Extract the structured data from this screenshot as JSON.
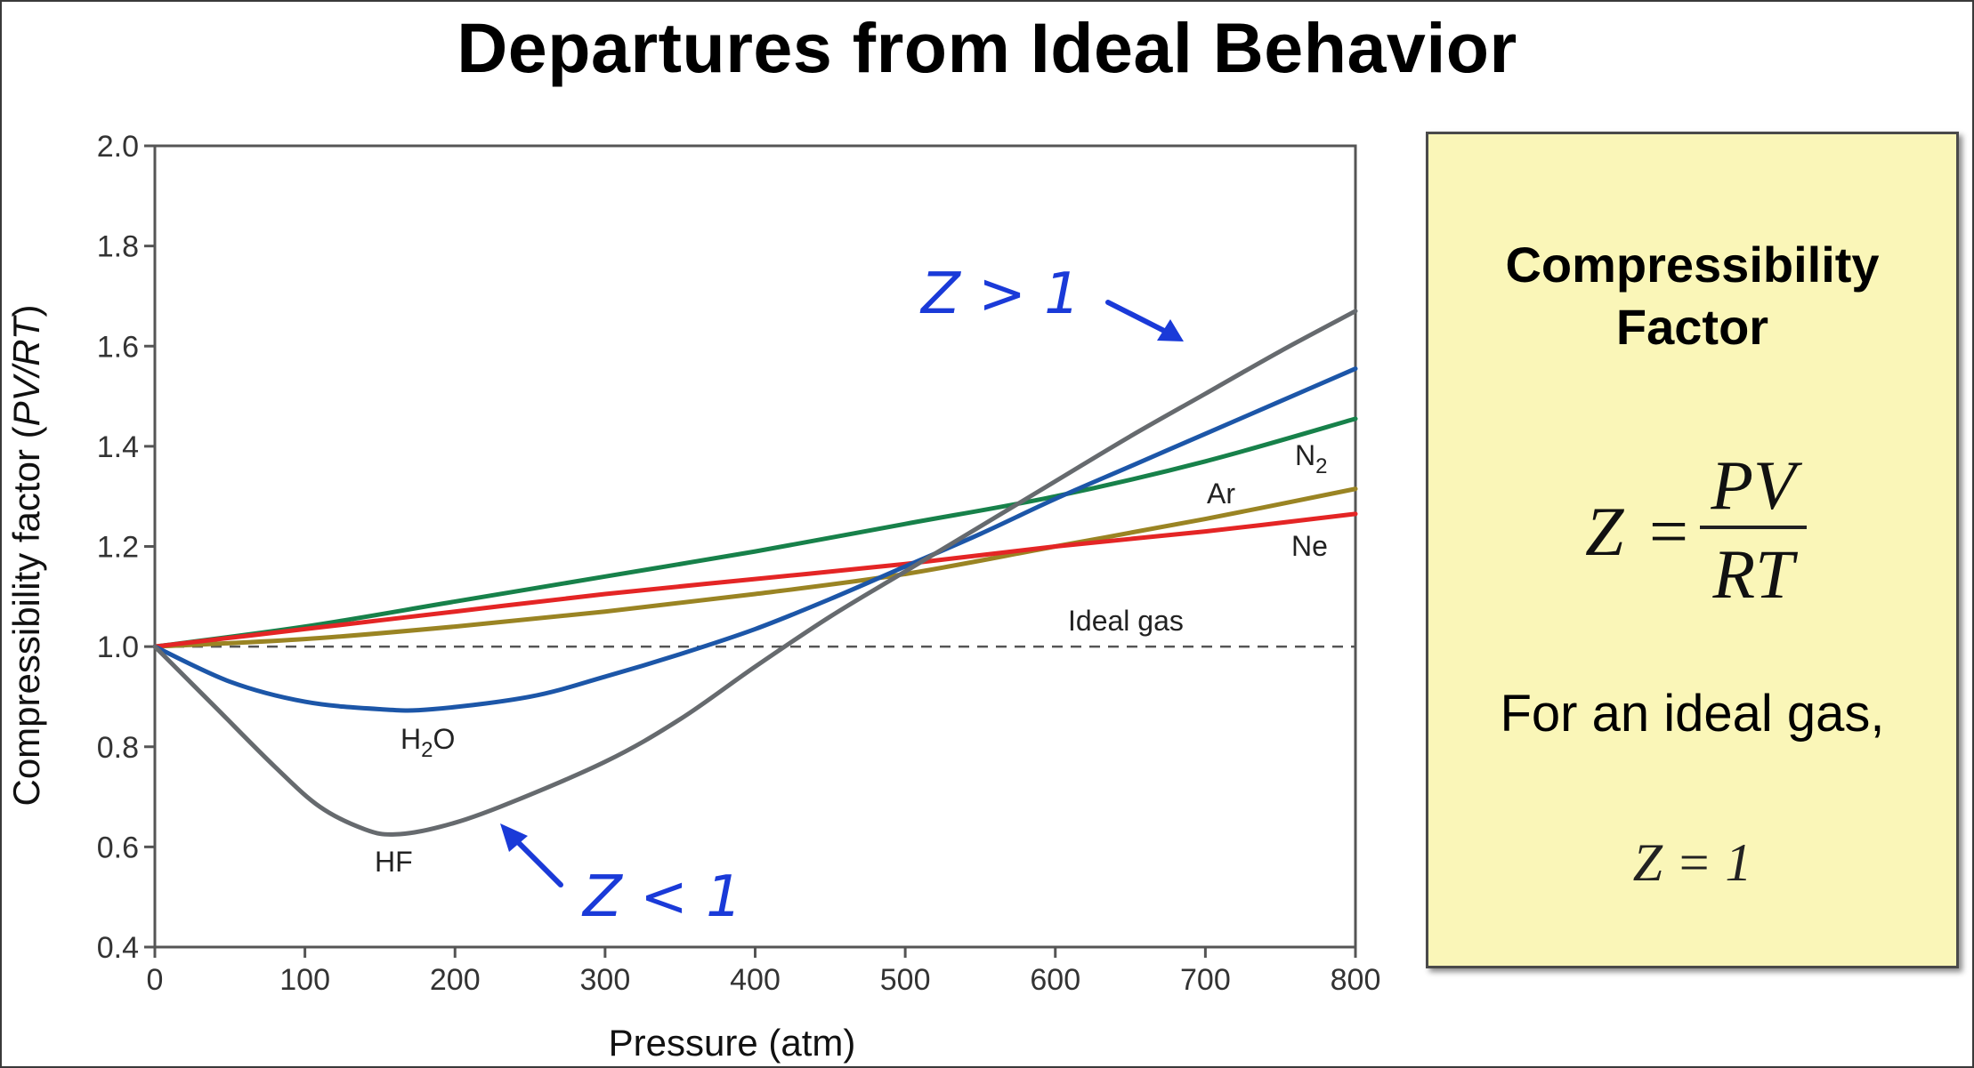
{
  "title": "Departures from Ideal Behavior",
  "chart_data": {
    "type": "line",
    "xlabel": "Pressure (atm)",
    "ylabel": "Compressibility factor (",
    "ylabel_italic": "PV/RT",
    "ylabel_end": ")",
    "xlim": [
      0,
      800
    ],
    "ylim": [
      0.4,
      2.0
    ],
    "x_ticks": [
      0,
      100,
      200,
      300,
      400,
      500,
      600,
      700,
      800
    ],
    "x_tick_labels": [
      "0",
      "100",
      "200",
      "300",
      "400",
      "500",
      "600",
      "700",
      "800"
    ],
    "y_ticks": [
      0.4,
      0.6,
      0.8,
      1.0,
      1.2,
      1.4,
      1.6,
      1.8,
      2.0
    ],
    "y_tick_labels": [
      "0.4",
      "0.6",
      "0.8",
      "1.0",
      "1.2",
      "1.4",
      "1.6",
      "1.8",
      "2.0"
    ],
    "grid": false,
    "series": [
      {
        "name": "Ideal gas",
        "color": "#555555",
        "dashed": true,
        "x": [
          0,
          800
        ],
        "y": [
          1.0,
          1.0
        ]
      },
      {
        "name": "N",
        "sub": "2",
        "color": "#17814a",
        "x": [
          0,
          100,
          200,
          300,
          400,
          500,
          600,
          700,
          800
        ],
        "y": [
          1.0,
          1.04,
          1.09,
          1.14,
          1.19,
          1.245,
          1.3,
          1.37,
          1.455
        ]
      },
      {
        "name": "Ar",
        "color": "#9a8423",
        "x": [
          0,
          100,
          200,
          300,
          400,
          500,
          600,
          700,
          800
        ],
        "y": [
          1.0,
          1.015,
          1.04,
          1.07,
          1.105,
          1.145,
          1.2,
          1.255,
          1.315
        ]
      },
      {
        "name": "Ne",
        "color": "#e42525",
        "x": [
          0,
          100,
          200,
          300,
          400,
          500,
          600,
          700,
          800
        ],
        "y": [
          1.0,
          1.035,
          1.07,
          1.105,
          1.135,
          1.165,
          1.2,
          1.23,
          1.265
        ]
      },
      {
        "name": "H",
        "sub": "2",
        "name_end": "O",
        "color": "#1c56a8",
        "x": [
          0,
          50,
          100,
          150,
          185,
          250,
          300,
          350,
          400,
          450,
          500,
          550,
          600,
          650,
          700,
          750,
          800
        ],
        "y": [
          1.0,
          0.93,
          0.89,
          0.875,
          0.875,
          0.9,
          0.94,
          0.985,
          1.035,
          1.095,
          1.16,
          1.225,
          1.295,
          1.36,
          1.425,
          1.49,
          1.555
        ]
      },
      {
        "name": "HF",
        "color": "#666a6e",
        "x": [
          0,
          40,
          80,
          110,
          140,
          160,
          190,
          230,
          300,
          350,
          400,
          450,
          500,
          550,
          600,
          650,
          700,
          750,
          800
        ],
        "y": [
          1.0,
          0.88,
          0.76,
          0.68,
          0.635,
          0.625,
          0.64,
          0.68,
          0.77,
          0.855,
          0.96,
          1.06,
          1.15,
          1.24,
          1.33,
          1.42,
          1.505,
          1.59,
          1.67
        ]
      }
    ],
    "annotations": {
      "z_gt": "Z > 1",
      "z_lt": "Z < 1",
      "annotation_color": "#1a3ad8"
    }
  },
  "info_box": {
    "title_line1": "Compressibility",
    "title_line2": "Factor",
    "formula_lhs": "Z",
    "formula_eq": "=",
    "formula_num": "PV",
    "formula_den": "RT",
    "text": "For an ideal gas,",
    "z_equals": "Z = 1",
    "bg_color": "#faf6b8"
  }
}
